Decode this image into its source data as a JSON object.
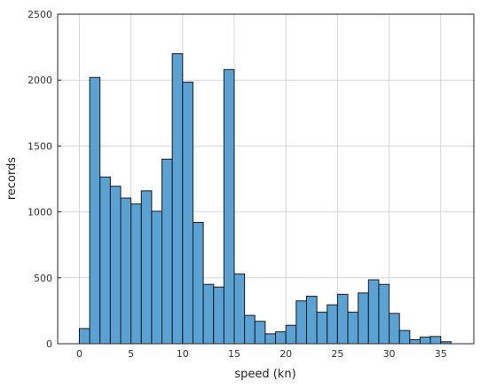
{
  "chart_data": {
    "type": "bar",
    "title": "",
    "xlabel": "speed (kn)",
    "ylabel": "records",
    "bin_width": 1,
    "bin_starts": [
      0,
      1,
      2,
      3,
      4,
      5,
      6,
      7,
      8,
      9,
      10,
      11,
      12,
      13,
      14,
      15,
      16,
      17,
      18,
      19,
      20,
      21,
      22,
      23,
      24,
      25,
      26,
      27,
      28,
      29,
      30,
      31,
      32,
      33,
      34,
      35
    ],
    "values": [
      115,
      2020,
      1265,
      1195,
      1105,
      1060,
      1160,
      1005,
      1400,
      2200,
      1985,
      920,
      450,
      430,
      2080,
      530,
      215,
      170,
      75,
      90,
      140,
      325,
      360,
      240,
      295,
      375,
      240,
      385,
      485,
      450,
      230,
      100,
      30,
      50,
      55,
      15
    ],
    "xlim": [
      -2.1,
      38.2
    ],
    "ylim": [
      0,
      2500
    ],
    "xticks": [
      0,
      5,
      10,
      15,
      20,
      25,
      30,
      35
    ],
    "yticks": [
      0,
      500,
      1000,
      1500,
      2000,
      2500
    ],
    "grid": true,
    "colors": {
      "bar_fill": "#5aa2d4",
      "bar_edge": "#1a1a1a"
    }
  }
}
